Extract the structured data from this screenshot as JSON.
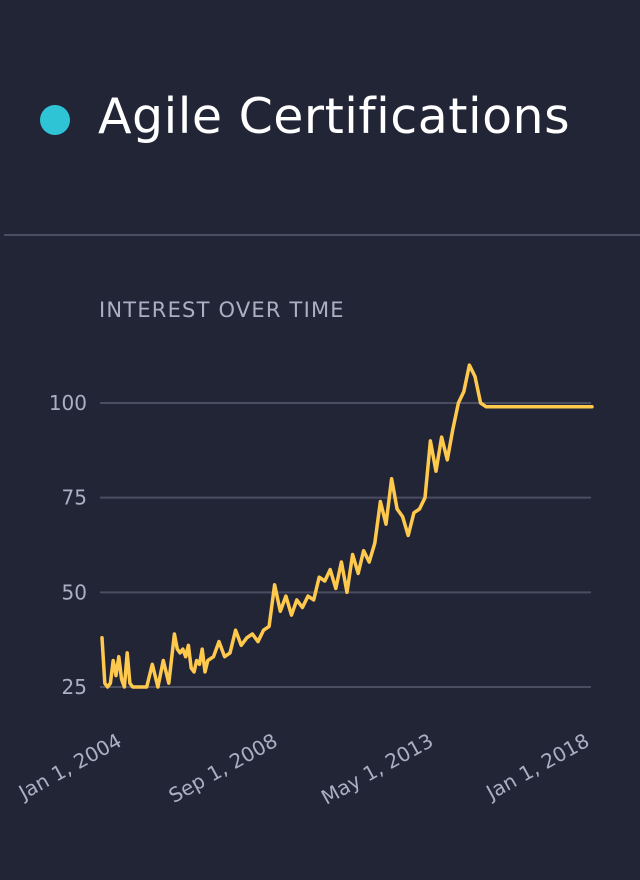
{
  "header": {
    "title": "Agile Certifications",
    "dot_color": "#2ec4d6"
  },
  "section": {
    "subtitle": "INTEREST OVER TIME"
  },
  "colors": {
    "line": "#ffc94d",
    "grid": "#4a4e60",
    "axis_text": "#a9b0c3",
    "background": "#222536"
  },
  "chart_data": {
    "type": "line",
    "title": "INTEREST OVER TIME",
    "xlabel": "",
    "ylabel": "",
    "grid": true,
    "ylim": [
      22,
      112
    ],
    "y_ticks": [
      25,
      50,
      75,
      100
    ],
    "x_ticks": [
      {
        "label": "Jan 1, 2004",
        "x": "2004-01-01"
      },
      {
        "label": "Sep 1, 2008",
        "x": "2008-09-01"
      },
      {
        "label": "May 1, 2013",
        "x": "2013-05-01"
      },
      {
        "label": "Jan 1, 2018",
        "x": "2018-01-01"
      }
    ],
    "series": [
      {
        "x": [
          "2003-05-15",
          "2003-06-15",
          "2003-07-15",
          "2003-08-15",
          "2003-09-15",
          "2003-10-15",
          "2003-11-15",
          "2003-12-15",
          "2004-01-15",
          "2004-02-15",
          "2004-03-15",
          "2004-04-15",
          "2004-05-15",
          "2004-07-15",
          "2004-09-15",
          "2004-11-15",
          "2005-01-15",
          "2005-03-15",
          "2005-05-15",
          "2005-07-15",
          "2005-08-15",
          "2005-09-15",
          "2005-10-15",
          "2005-11-15",
          "2005-12-15",
          "2006-01-15",
          "2006-02-15",
          "2006-03-15",
          "2006-04-15",
          "2006-05-15",
          "2006-06-15",
          "2006-07-15",
          "2006-09-15",
          "2006-11-15",
          "2007-01-15",
          "2007-03-15",
          "2007-05-15",
          "2007-07-15",
          "2007-09-15",
          "2007-11-15",
          "2008-01-15",
          "2008-03-15",
          "2008-05-15",
          "2008-07-15",
          "2008-09-15",
          "2008-11-15",
          "2009-01-15",
          "2009-03-15",
          "2009-05-15",
          "2009-07-15",
          "2009-09-15",
          "2009-11-15",
          "2010-01-15",
          "2010-03-15",
          "2010-05-15",
          "2010-07-15",
          "2010-09-15",
          "2010-11-15",
          "2011-01-15",
          "2011-03-15",
          "2011-05-15",
          "2011-07-15",
          "2011-09-15",
          "2011-11-15",
          "2012-01-15",
          "2012-03-15",
          "2012-05-15",
          "2012-07-15",
          "2012-09-15",
          "2012-11-15",
          "2013-01-15",
          "2013-03-15",
          "2013-05-15",
          "2013-07-15",
          "2013-09-15",
          "2013-11-15",
          "2014-01-15",
          "2014-03-15",
          "2014-05-15",
          "2014-07-15",
          "2014-09-15",
          "2014-11-15",
          "2015-01-15",
          "2015-03-15",
          "2015-05-15",
          "2015-07-15",
          "2015-09-15",
          "2015-11-15",
          "2016-01-15",
          "2016-03-15",
          "2016-05-15",
          "2016-07-15",
          "2016-09-15",
          "2016-11-15",
          "2017-01-15",
          "2017-03-15",
          "2017-05-15",
          "2017-07-15",
          "2017-09-15",
          "2017-11-15",
          "2017-12-15",
          "2018-01-15"
        ],
        "values": [
          38,
          26,
          25,
          26,
          32,
          28,
          33,
          27,
          25,
          34,
          26,
          25,
          25,
          25,
          25,
          31,
          25,
          32,
          26,
          39,
          35,
          34,
          35,
          33,
          36,
          30,
          29,
          32,
          31,
          35,
          29,
          32,
          33,
          37,
          33,
          34,
          40,
          36,
          38,
          39,
          37,
          40,
          41,
          52,
          45,
          49,
          44,
          48,
          46,
          49,
          48,
          54,
          53,
          56,
          51,
          58,
          50,
          60,
          55,
          61,
          58,
          63,
          74,
          68,
          80,
          72,
          70,
          65,
          71,
          72,
          75,
          90,
          82,
          91,
          85,
          93,
          100,
          103,
          110,
          107,
          100,
          99,
          99,
          99,
          99,
          99,
          99,
          99,
          99,
          99,
          99,
          99,
          99,
          99,
          99,
          99,
          99,
          99,
          99,
          99,
          99,
          99
        ]
      }
    ]
  }
}
